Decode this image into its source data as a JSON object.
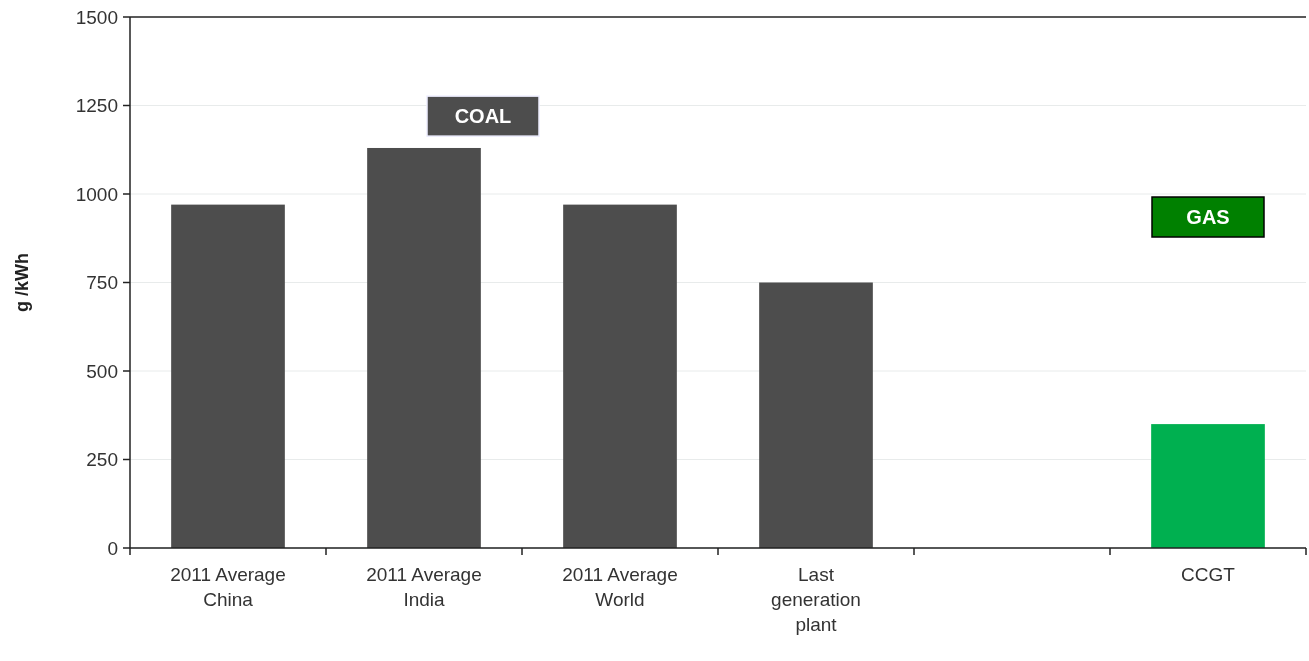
{
  "chart_data": {
    "type": "bar",
    "ylabel": "g /kWh",
    "categories": [
      "2011 Average\nChina",
      "2011 Average\nIndia",
      "2011 Average\nWorld",
      "Last\ngeneration\nplant",
      null,
      "CCGT"
    ],
    "values": [
      970,
      1130,
      970,
      750,
      null,
      350
    ],
    "colors": [
      "#4d4d4d",
      "#4d4d4d",
      "#4d4d4d",
      "#4d4d4d",
      null,
      "#00b050"
    ],
    "ylim": [
      0,
      1500
    ],
    "yticks": [
      0,
      250,
      500,
      750,
      1000,
      1250,
      1500
    ],
    "grid": "y",
    "annotations": [
      "COAL",
      "GAS"
    ]
  }
}
